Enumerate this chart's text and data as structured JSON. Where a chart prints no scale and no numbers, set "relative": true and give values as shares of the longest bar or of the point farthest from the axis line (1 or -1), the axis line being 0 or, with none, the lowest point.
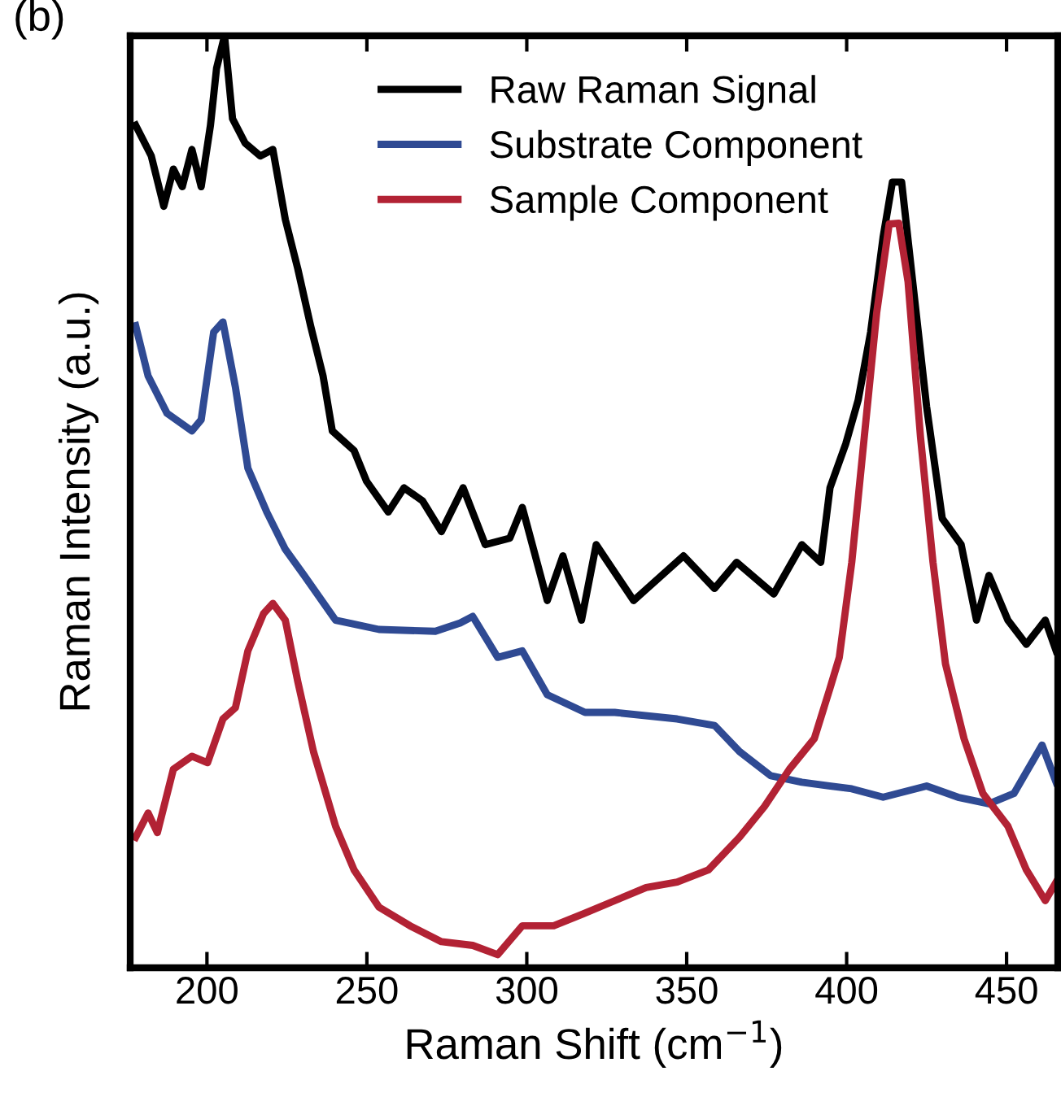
{
  "chart_data": {
    "type": "line",
    "title": "(b)",
    "xlabel": "Raman Shift (cm$^{−1}$)",
    "ylabel": "Raman Intensity (a.u.)",
    "relative": true,
    "xlim": [
      176,
      466
    ],
    "xticks": [
      200,
      250,
      300,
      350,
      400,
      450
    ],
    "tick_labels": "x",
    "grid": false,
    "legend": "top",
    "marker": "none",
    "line_style": "solid",
    "series": [
      {
        "name": "Raw Raman Signal",
        "color": "#000000",
        "x": [
          177.7,
          182.6,
          186.5,
          189.5,
          192.3,
          195.3,
          198.2,
          201.1,
          203.0,
          205.5,
          208,
          211.9,
          216.7,
          220.6,
          224.5,
          228.4,
          232.4,
          236.3,
          239.2,
          246.0,
          249.9,
          256.7,
          261.6,
          267.4,
          273.3,
          280.1,
          287.0,
          294.7,
          298.6,
          306.4,
          311.3,
          317.1,
          321.7,
          333.4,
          349.0,
          358.7,
          365.6,
          377.2,
          386.0,
          391.9,
          394.8,
          399.7,
          403.6,
          407.5,
          411.4,
          414.3,
          417.2,
          420.2,
          425.0,
          429.9,
          435.8,
          440.6,
          444.5,
          450.4,
          456.2,
          462.1,
          465.5
        ],
        "values": [
          0.904,
          0.871,
          0.817,
          0.857,
          0.838,
          0.878,
          0.838,
          0.904,
          0.965,
          1.0,
          0.911,
          0.885,
          0.871,
          0.878,
          0.803,
          0.75,
          0.689,
          0.635,
          0.576,
          0.555,
          0.522,
          0.489,
          0.515,
          0.501,
          0.468,
          0.515,
          0.454,
          0.461,
          0.494,
          0.394,
          0.442,
          0.373,
          0.454,
          0.394,
          0.442,
          0.407,
          0.435,
          0.401,
          0.454,
          0.435,
          0.515,
          0.562,
          0.609,
          0.682,
          0.784,
          0.843,
          0.843,
          0.75,
          0.602,
          0.482,
          0.454,
          0.373,
          0.421,
          0.373,
          0.347,
          0.373,
          0.34
        ]
      },
      {
        "name": "Substrate Component",
        "color": "#2f4a93",
        "x": [
          177.7,
          181.6,
          187.5,
          195.3,
          198.2,
          202.1,
          205.0,
          208.9,
          212.8,
          218.7,
          224.5,
          230.4,
          240.2,
          253.8,
          271.4,
          279.2,
          283.1,
          290.9,
          298.6,
          306.4,
          318.2,
          327.5,
          347.0,
          358.7,
          366.5,
          376.3,
          386.0,
          401.6,
          411.4,
          425.0,
          434.8,
          444.5,
          452.3,
          461.1,
          465.5
        ],
        "values": [
          0.689,
          0.635,
          0.595,
          0.576,
          0.588,
          0.682,
          0.693,
          0.623,
          0.536,
          0.489,
          0.449,
          0.421,
          0.373,
          0.363,
          0.361,
          0.37,
          0.377,
          0.333,
          0.34,
          0.293,
          0.274,
          0.274,
          0.267,
          0.26,
          0.232,
          0.206,
          0.199,
          0.192,
          0.183,
          0.195,
          0.183,
          0.176,
          0.187,
          0.239,
          0.199
        ]
      },
      {
        "name": "Sample Component",
        "color": "#b22234",
        "x": [
          177.7,
          181.6,
          184.5,
          189.5,
          195.3,
          200.2,
          205.0,
          208.9,
          212.8,
          217.7,
          220.6,
          224.5,
          228.4,
          233.3,
          240.2,
          246.0,
          253.8,
          263.5,
          273.3,
          283.1,
          290.9,
          298.6,
          308.4,
          317.7,
          327.5,
          337.3,
          347.0,
          356.8,
          366.5,
          374.3,
          382.1,
          389.9,
          394.8,
          397.7,
          401.6,
          405.5,
          409.4,
          413.3,
          416.3,
          419.2,
          423.1,
          427.0,
          430.9,
          436.7,
          442.6,
          450.4,
          456.2,
          462.1,
          465.5
        ],
        "values": [
          0.14,
          0.166,
          0.145,
          0.213,
          0.227,
          0.22,
          0.267,
          0.279,
          0.34,
          0.38,
          0.391,
          0.373,
          0.307,
          0.232,
          0.152,
          0.105,
          0.065,
          0.045,
          0.028,
          0.024,
          0.014,
          0.045,
          0.045,
          0.058,
          0.072,
          0.086,
          0.092,
          0.105,
          0.14,
          0.173,
          0.213,
          0.246,
          0.3,
          0.333,
          0.435,
          0.569,
          0.703,
          0.798,
          0.799,
          0.736,
          0.569,
          0.435,
          0.326,
          0.246,
          0.187,
          0.152,
          0.105,
          0.072,
          0.092
        ]
      }
    ]
  }
}
